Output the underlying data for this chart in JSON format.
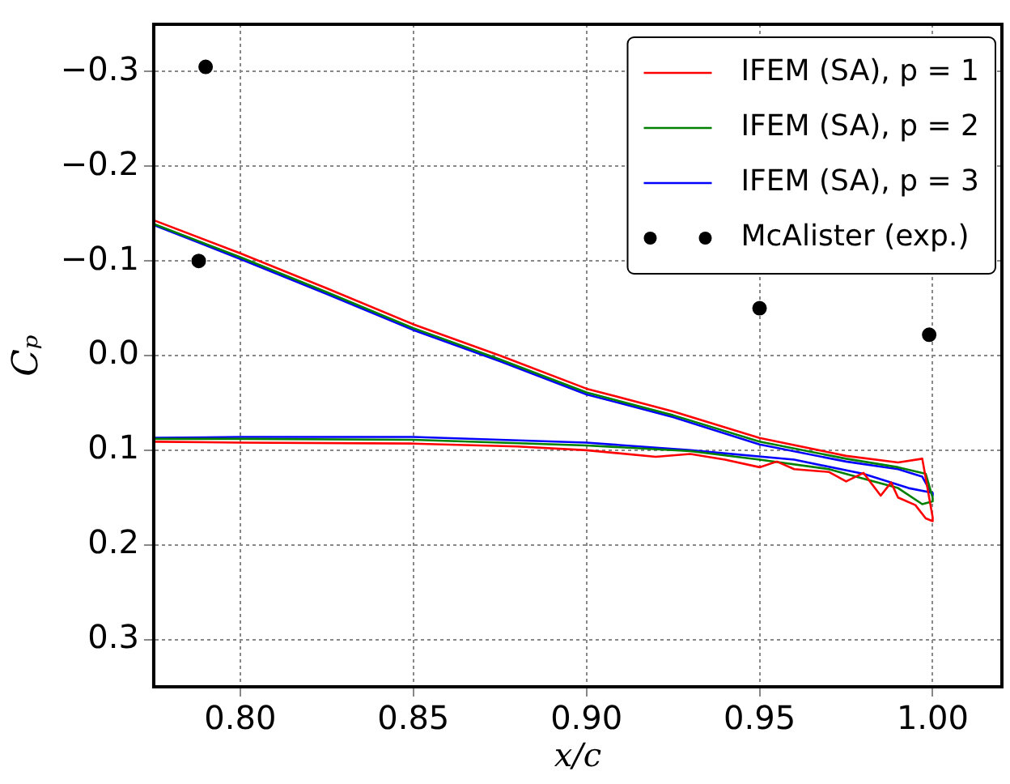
{
  "chart_data": {
    "type": "line",
    "xlabel": "x/c",
    "ylabel": "Cₚ",
    "xlim": [
      0.775,
      1.02
    ],
    "ylim": [
      0.35,
      -0.35
    ],
    "xticks": [
      {
        "value": 0.8,
        "label": "0.80"
      },
      {
        "value": 0.85,
        "label": "0.85"
      },
      {
        "value": 0.9,
        "label": "0.90"
      },
      {
        "value": 0.95,
        "label": "0.95"
      },
      {
        "value": 1.0,
        "label": "1.00"
      }
    ],
    "yticks": [
      {
        "value": -0.3,
        "label": "−0.3"
      },
      {
        "value": -0.2,
        "label": "−0.2"
      },
      {
        "value": -0.1,
        "label": "−0.1"
      },
      {
        "value": 0,
        "label": "0.0"
      },
      {
        "value": 0.1,
        "label": "0.1"
      },
      {
        "value": 0.2,
        "label": "0.2"
      },
      {
        "value": 0.3,
        "label": "0.3"
      }
    ],
    "grid": true,
    "legend": "top right",
    "line_style": "solid",
    "series": [
      {
        "name": "IFEM (SA), p = 1",
        "color": "#ff0000",
        "x": [
          0.775,
          0.8,
          0.825,
          0.85,
          0.875,
          0.9,
          0.925,
          0.95,
          0.975,
          0.99,
          0.997,
          1.0,
          1.0,
          0.998,
          0.995,
          0.99,
          0.988,
          0.985,
          0.98,
          0.975,
          0.97,
          0.96,
          0.955,
          0.95,
          0.94,
          0.93,
          0.92,
          0.9,
          0.88,
          0.85,
          0.8,
          0.775
        ],
        "values": [
          -0.143,
          -0.108,
          -0.071,
          -0.033,
          0.0,
          0.035,
          0.059,
          0.087,
          0.106,
          0.113,
          0.109,
          0.171,
          0.175,
          0.172,
          0.158,
          0.15,
          0.134,
          0.148,
          0.124,
          0.133,
          0.123,
          0.12,
          0.112,
          0.118,
          0.11,
          0.104,
          0.107,
          0.1,
          0.096,
          0.093,
          0.092,
          0.091
        ]
      },
      {
        "name": "IFEM (SA), p = 2",
        "color": "#008000",
        "x": [
          0.775,
          0.8,
          0.825,
          0.85,
          0.875,
          0.9,
          0.925,
          0.95,
          0.975,
          0.99,
          0.998,
          1.0,
          1.0,
          0.997,
          0.99,
          0.98,
          0.97,
          0.95,
          0.93,
          0.9,
          0.85,
          0.8,
          0.775
        ],
        "values": [
          -0.139,
          -0.104,
          -0.067,
          -0.029,
          0.004,
          0.039,
          0.063,
          0.091,
          0.109,
          0.118,
          0.125,
          0.15,
          0.154,
          0.157,
          0.14,
          0.13,
          0.12,
          0.11,
          0.101,
          0.095,
          0.089,
          0.088,
          0.088
        ]
      },
      {
        "name": "IFEM (SA), p = 3",
        "color": "#0000ff",
        "x": [
          0.775,
          0.8,
          0.825,
          0.85,
          0.875,
          0.9,
          0.925,
          0.95,
          0.975,
          0.99,
          0.997,
          1.0,
          1.0,
          0.993,
          0.98,
          0.96,
          0.93,
          0.9,
          0.85,
          0.8,
          0.775
        ],
        "values": [
          -0.138,
          -0.102,
          -0.065,
          -0.027,
          0.006,
          0.041,
          0.065,
          0.094,
          0.112,
          0.12,
          0.128,
          0.148,
          0.145,
          0.14,
          0.125,
          0.11,
          0.1,
          0.092,
          0.086,
          0.086,
          0.087
        ]
      },
      {
        "name": "McAlister (exp.)",
        "type": "scatter",
        "color": "#000000",
        "marker": "circle",
        "x": [
          0.79,
          0.788,
          0.95,
          0.999
        ],
        "values": [
          -0.305,
          -0.1,
          -0.05,
          -0.022
        ]
      }
    ]
  }
}
